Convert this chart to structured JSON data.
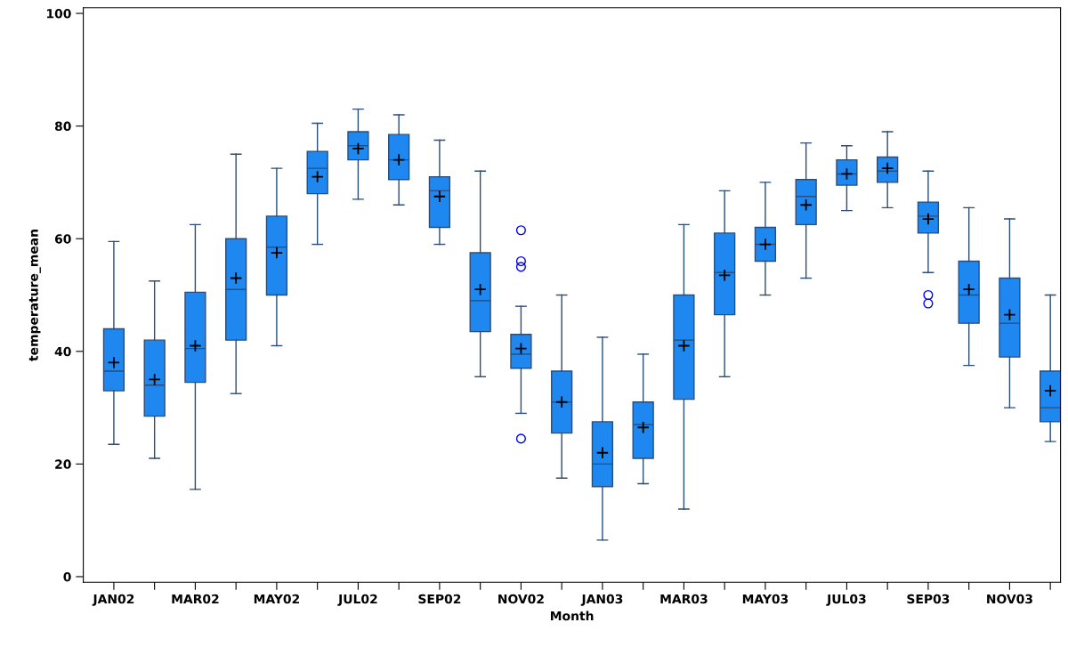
{
  "chart_data": {
    "type": "box",
    "xlabel": "Month",
    "ylabel": "temperature_mean",
    "categories": [
      "JAN02",
      null,
      "MAR02",
      null,
      "MAY02",
      null,
      "JUL02",
      null,
      "SEP02",
      null,
      "NOV02",
      null,
      "JAN03",
      null,
      "MAR03",
      null,
      "MAY03",
      null,
      "JUL03",
      null,
      "SEP03",
      null,
      "NOV03",
      null
    ],
    "color": "#1e88f0",
    "boxes": [
      {
        "low": 23.5,
        "q1": 33,
        "median": 36.5,
        "q3": 44,
        "high": 59.5,
        "mean": 38
      },
      {
        "low": 21,
        "q1": 28.5,
        "median": 34,
        "q3": 42,
        "high": 52.5,
        "mean": 35
      },
      {
        "low": 15.5,
        "q1": 34.5,
        "median": 40.5,
        "q3": 50.5,
        "high": 62.5,
        "mean": 41
      },
      {
        "low": 32.5,
        "q1": 42,
        "median": 51,
        "q3": 60,
        "high": 75,
        "mean": 53
      },
      {
        "low": 41,
        "q1": 50,
        "median": 58.5,
        "q3": 64,
        "high": 72.5,
        "mean": 57.5
      },
      {
        "low": 59,
        "q1": 68,
        "median": 72.5,
        "q3": 75.5,
        "high": 80.5,
        "mean": 71
      },
      {
        "low": 67,
        "q1": 74,
        "median": 76.5,
        "q3": 79,
        "high": 83,
        "mean": 76
      },
      {
        "low": 66,
        "q1": 70.5,
        "median": 74,
        "q3": 78.5,
        "high": 82,
        "mean": 74
      },
      {
        "low": 59,
        "q1": 62,
        "median": 68.5,
        "q3": 71,
        "high": 77.5,
        "mean": 67.5
      },
      {
        "low": 35.5,
        "q1": 43.5,
        "median": 49,
        "q3": 57.5,
        "high": 72,
        "mean": 51
      },
      {
        "low": 29,
        "q1": 37,
        "median": 39.5,
        "q3": 43,
        "high": 48,
        "mean": 40.5,
        "outliers": [
          61.5,
          56,
          55,
          24.5
        ]
      },
      {
        "low": 17.5,
        "q1": 25.5,
        "median": 31,
        "q3": 36.5,
        "high": 50,
        "mean": 31
      },
      {
        "low": 6.5,
        "q1": 16,
        "median": 20,
        "q3": 27.5,
        "high": 42.5,
        "mean": 22
      },
      {
        "low": 16.5,
        "q1": 21,
        "median": 27,
        "q3": 31,
        "high": 39.5,
        "mean": 26.5
      },
      {
        "low": 12,
        "q1": 31.5,
        "median": 42,
        "q3": 50,
        "high": 62.5,
        "mean": 41
      },
      {
        "low": 35.5,
        "q1": 46.5,
        "median": 54,
        "q3": 61,
        "high": 68.5,
        "mean": 53.5
      },
      {
        "low": 50,
        "q1": 56,
        "median": 59,
        "q3": 62,
        "high": 70,
        "mean": 59
      },
      {
        "low": 53,
        "q1": 62.5,
        "median": 67.5,
        "q3": 70.5,
        "high": 77,
        "mean": 66
      },
      {
        "low": 65,
        "q1": 69.5,
        "median": 71.5,
        "q3": 74,
        "high": 76.5,
        "mean": 71.5
      },
      {
        "low": 65.5,
        "q1": 70,
        "median": 72,
        "q3": 74.5,
        "high": 79,
        "mean": 72.5
      },
      {
        "low": 54,
        "q1": 61,
        "median": 64,
        "q3": 66.5,
        "high": 72,
        "mean": 63.5,
        "outliers": [
          50,
          48.5
        ]
      },
      {
        "low": 37.5,
        "q1": 45,
        "median": 50,
        "q3": 56,
        "high": 65.5,
        "mean": 51
      },
      {
        "low": 30,
        "q1": 39,
        "median": 45,
        "q3": 53,
        "high": 63.5,
        "mean": 46.5
      },
      {
        "low": 24,
        "q1": 27.5,
        "median": 30,
        "q3": 36.5,
        "high": 50,
        "mean": 33
      }
    ],
    "ylim": [
      -1,
      101
    ],
    "yticks": [
      0,
      20,
      40,
      60,
      80,
      100
    ]
  }
}
